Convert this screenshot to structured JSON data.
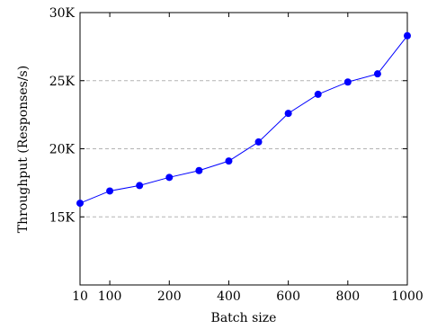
{
  "chart_data": {
    "type": "line",
    "categories": [
      "10",
      "100",
      "150",
      "200",
      "300",
      "400",
      "500",
      "600",
      "700",
      "800",
      "900",
      "1000"
    ],
    "series": [
      {
        "values": [
          16000,
          16900,
          17300,
          17900,
          18400,
          19100,
          20500,
          22600,
          24000,
          24900,
          25500,
          28300
        ],
        "color": "#0000ff"
      }
    ],
    "x_tick_labels": [
      "10",
      "100",
      "200",
      "400",
      "600",
      "800",
      "1000"
    ],
    "x_tick_values": [
      10,
      100,
      200,
      400,
      600,
      800,
      1000
    ],
    "y_ticks": [
      {
        "value": 15000,
        "label": "15K"
      },
      {
        "value": 20000,
        "label": "20K"
      },
      {
        "value": 25000,
        "label": "25K"
      },
      {
        "value": 30000,
        "label": "30K"
      }
    ],
    "ylim": [
      10000,
      30000
    ],
    "xlabel": "Batch size",
    "ylabel": "Throughput (Responses/s)",
    "title": "",
    "grid": "horizontal-dashed",
    "gridline_color": "#b3b3b3"
  }
}
